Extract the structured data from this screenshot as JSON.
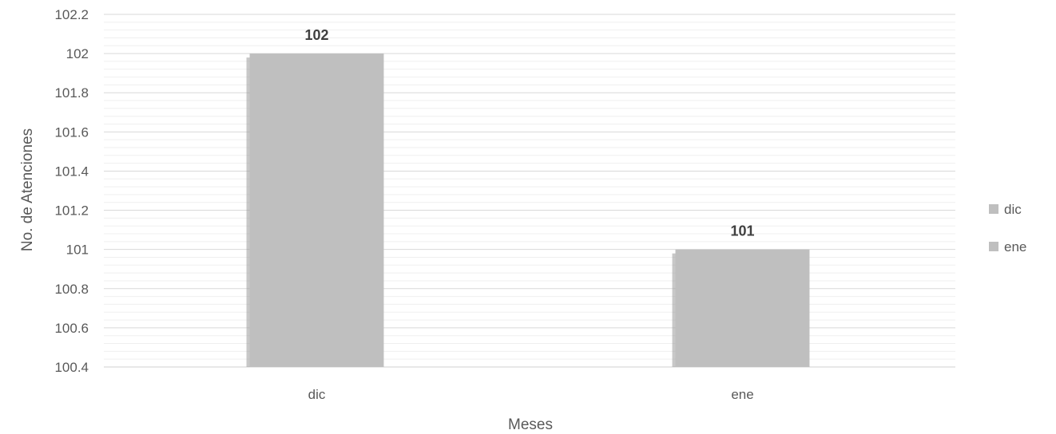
{
  "chart_data": {
    "type": "bar",
    "categories": [
      "dic",
      "ene"
    ],
    "values": [
      102,
      101
    ],
    "data_labels": [
      "102",
      "101"
    ],
    "title": "",
    "xlabel": "Meses",
    "ylabel": "No. de Atenciones",
    "ylim": [
      100.4,
      102.2
    ],
    "yticks": [
      100.4,
      100.6,
      100.8,
      101,
      101.2,
      101.4,
      101.6,
      101.8,
      102,
      102.2
    ],
    "ytick_labels": [
      "100.4",
      "100.6",
      "100.8",
      "101",
      "101.2",
      "101.4",
      "101.6",
      "101.8",
      "102",
      "102.2"
    ],
    "grid": true,
    "legend": {
      "placement": "right",
      "entries": [
        "dic",
        "ene"
      ]
    },
    "colors": {
      "bar": "#bfbfbf",
      "grid": "#d9d9d9",
      "text": "#595959"
    }
  }
}
